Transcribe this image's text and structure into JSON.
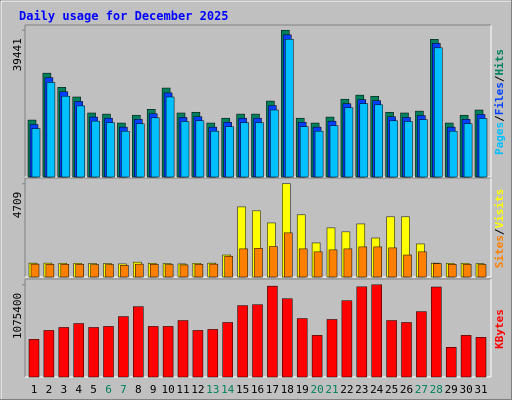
{
  "chart_data": {
    "type": "bar",
    "title": "Daily usage for December 2025",
    "categories": [
      "1",
      "2",
      "3",
      "4",
      "5",
      "6",
      "7",
      "8",
      "9",
      "10",
      "11",
      "12",
      "13",
      "14",
      "15",
      "16",
      "17",
      "18",
      "19",
      "20",
      "21",
      "22",
      "23",
      "24",
      "25",
      "26",
      "27",
      "28",
      "29",
      "30",
      "31"
    ],
    "category_colors": [
      "#000000",
      "#000000",
      "#000000",
      "#000000",
      "#000000",
      "#00805c",
      "#00805c",
      "#000000",
      "#000000",
      "#000000",
      "#000000",
      "#000000",
      "#00805c",
      "#00805c",
      "#000000",
      "#000000",
      "#000000",
      "#000000",
      "#000000",
      "#00805c",
      "#00805c",
      "#000000",
      "#000000",
      "#000000",
      "#000000",
      "#000000",
      "#00805c",
      "#00805c",
      "#000000",
      "#000000",
      "#000000"
    ],
    "separator": "/",
    "panels": [
      {
        "ylim": [
          0,
          40300
        ],
        "yticks": [
          39441
        ],
        "series": [
          {
            "name": "Hits",
            "color": "#00805c",
            "values": [
              15300,
              27900,
              24100,
              21500,
              17200,
              16900,
              14500,
              16600,
              18200,
              23900,
              17200,
              17400,
              14500,
              15800,
              16900,
              16900,
              20400,
              39441,
              15800,
              14500,
              16100,
              20900,
              22000,
              21700,
              17400,
              17200,
              17700,
              37000,
              14500,
              16600,
              18000
            ]
          },
          {
            "name": "Files",
            "color": "#0040ff",
            "values": [
              14100,
              26700,
              22900,
              20300,
              16100,
              15800,
              13400,
              15500,
              17000,
              22600,
              16000,
              16200,
              13400,
              14700,
              15800,
              15800,
              19200,
              38200,
              14700,
              13400,
              15000,
              19700,
              20800,
              20500,
              16200,
              16000,
              16500,
              35900,
              13400,
              15500,
              16800
            ]
          },
          {
            "name": "Pages",
            "color": "#00c0ff",
            "values": [
              13000,
              25400,
              21700,
              19100,
              15000,
              14600,
              12300,
              14300,
              15900,
              21500,
              14900,
              15100,
              12300,
              13500,
              14600,
              14600,
              18000,
              37000,
              13500,
              12300,
              13800,
              18600,
              19700,
              19400,
              15100,
              14900,
              15400,
              34700,
              12300,
              14300,
              15700
            ]
          }
        ]
      },
      {
        "ylim": [
          0,
          4900
        ],
        "yticks": [
          4709
        ],
        "series": [
          {
            "name": "Visits",
            "color": "#ffff00",
            "values": [
              700,
              700,
              690,
              690,
              680,
              680,
              660,
              750,
              690,
              680,
              660,
              690,
              700,
              1110,
              3540,
              3340,
              2730,
              4709,
              3140,
              1720,
              2480,
              2280,
              2680,
              1970,
              3040,
              3040,
              1670,
              700,
              690,
              690,
              680
            ]
          },
          {
            "name": "Sites",
            "color": "#ff8000",
            "values": [
              650,
              640,
              640,
              640,
              630,
              630,
              590,
              650,
              640,
              630,
              610,
              640,
              650,
              1050,
              1420,
              1450,
              1540,
              2230,
              1420,
              1270,
              1370,
              1420,
              1520,
              1520,
              1470,
              1110,
              1270,
              680,
              640,
              640,
              630
            ]
          }
        ]
      },
      {
        "ylim": [
          0,
          1120000
        ],
        "yticks": [
          1075400
        ],
        "series": [
          {
            "name": "KBytes",
            "color": "#ff0000",
            "values": [
              439000,
              543000,
              578000,
              624000,
              578000,
              590000,
              705000,
              821000,
              590000,
              590000,
              659000,
              543000,
              555000,
              636000,
              833000,
              844000,
              1060000,
              913000,
              682000,
              486000,
              671000,
              890000,
              1052000,
              1075400,
              659000,
              636000,
              763000,
              1050000,
              347000,
              486000,
              463000
            ]
          }
        ]
      }
    ]
  }
}
